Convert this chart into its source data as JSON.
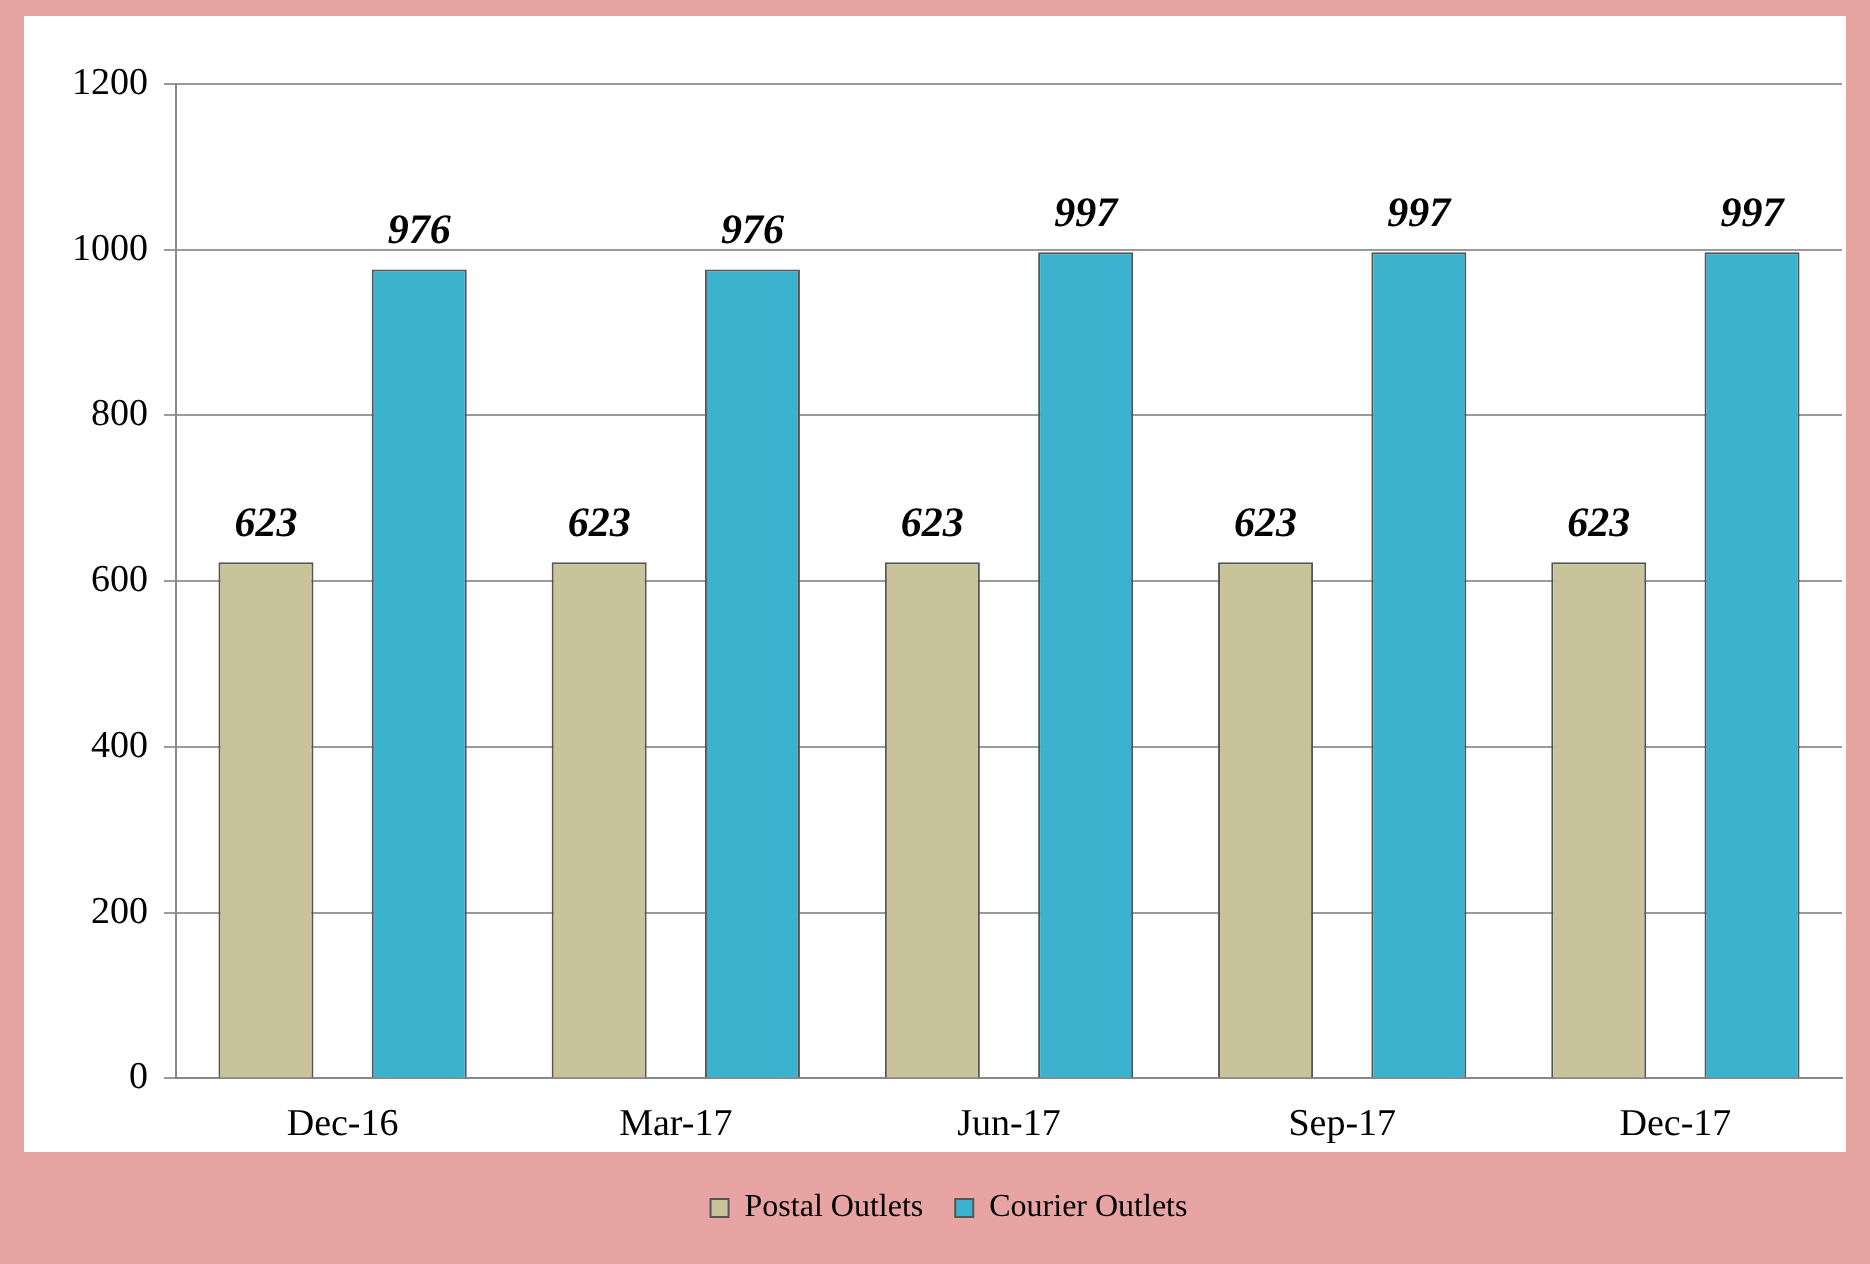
{
  "chart_data": {
    "type": "bar",
    "categories": [
      "Dec-16",
      "Mar-17",
      "Jun-17",
      "Sep-17",
      "Dec-17"
    ],
    "series": [
      {
        "name": "Postal Outlets",
        "color": "#c9c39b",
        "values": [
          623,
          623,
          623,
          623,
          623
        ]
      },
      {
        "name": "Courier Outlets",
        "color": "#3bb3cf",
        "values": [
          976,
          976,
          997,
          997,
          997
        ]
      }
    ],
    "ylim": [
      0,
      1200
    ],
    "yticks": [
      0,
      200,
      400,
      600,
      800,
      1000,
      1200
    ],
    "grid": "y",
    "legend": "bottom",
    "data_labels": true
  }
}
